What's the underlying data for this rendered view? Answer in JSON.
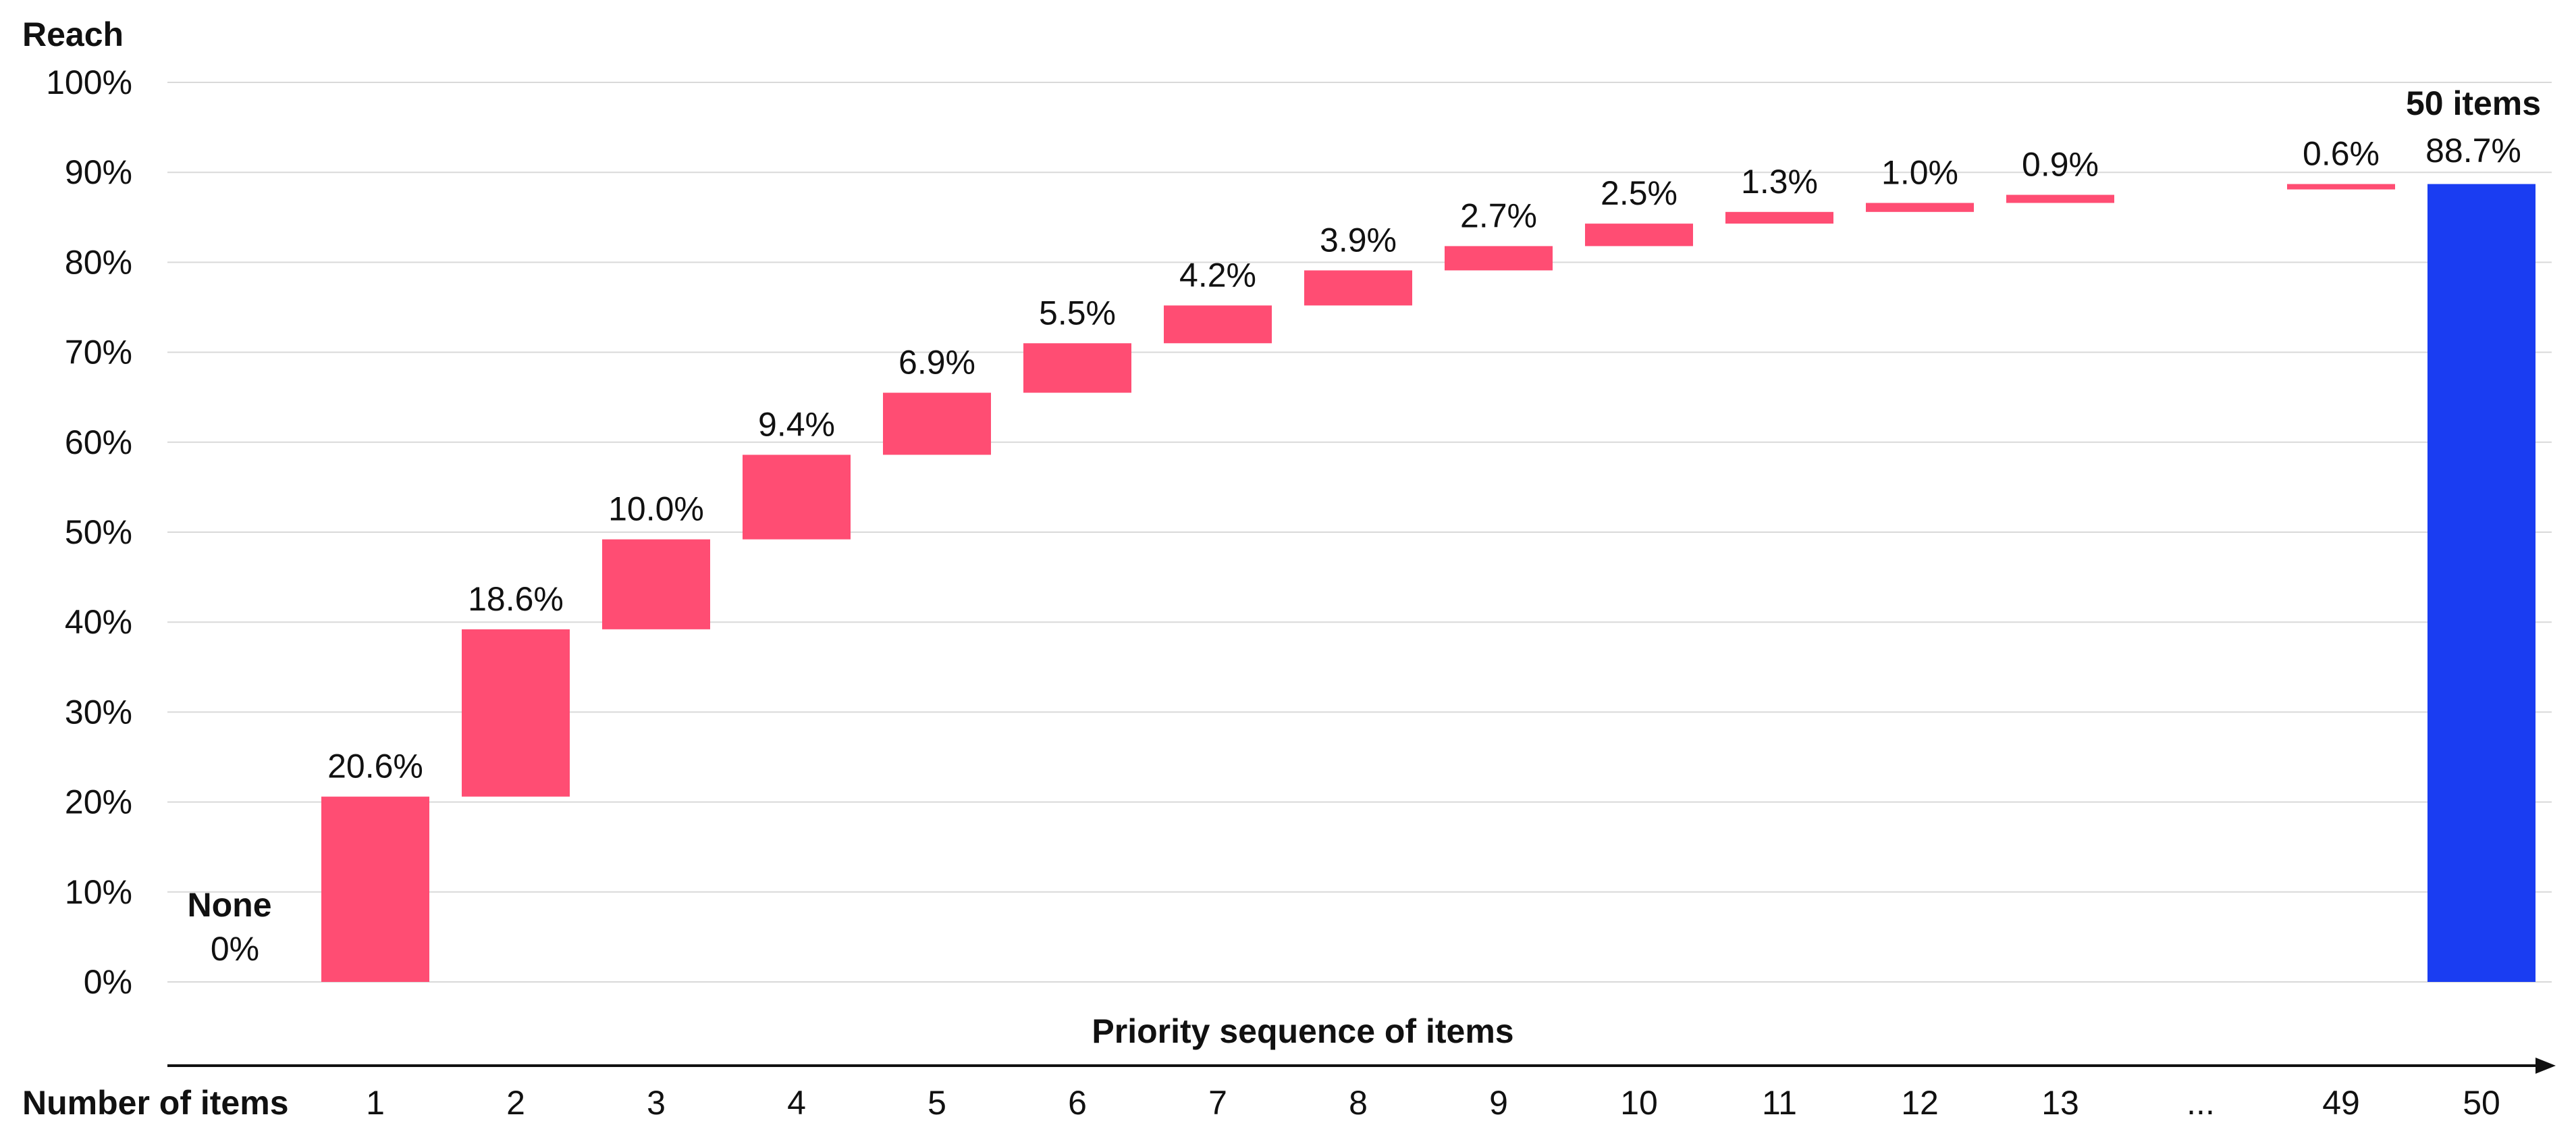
{
  "chart_data": {
    "type": "waterfall",
    "ylabel": "Reach",
    "xlabel": "Priority sequence of items",
    "row_label": "Number of items",
    "ylim": [
      0,
      100
    ],
    "yticks": [
      "0%",
      "10%",
      "20%",
      "30%",
      "40%",
      "50%",
      "60%",
      "70%",
      "80%",
      "90%",
      "100%"
    ],
    "grid": true,
    "categories": [
      "",
      "1",
      "2",
      "3",
      "4",
      "5",
      "6",
      "7",
      "8",
      "9",
      "10",
      "11",
      "12",
      "13",
      "...",
      "49",
      "50"
    ],
    "start": {
      "label": "None",
      "value_label": "0%",
      "value": 0
    },
    "steps": [
      {
        "category": "1",
        "increment": 20.6,
        "label": "20.6%"
      },
      {
        "category": "2",
        "increment": 18.6,
        "label": "18.6%"
      },
      {
        "category": "3",
        "increment": 10.0,
        "label": "10.0%"
      },
      {
        "category": "4",
        "increment": 9.4,
        "label": "9.4%"
      },
      {
        "category": "5",
        "increment": 6.9,
        "label": "6.9%"
      },
      {
        "category": "6",
        "increment": 5.5,
        "label": "5.5%"
      },
      {
        "category": "7",
        "increment": 4.2,
        "label": "4.2%"
      },
      {
        "category": "8",
        "increment": 3.9,
        "label": "3.9%"
      },
      {
        "category": "9",
        "increment": 2.7,
        "label": "2.7%"
      },
      {
        "category": "10",
        "increment": 2.5,
        "label": "2.5%"
      },
      {
        "category": "11",
        "increment": 1.3,
        "label": "1.3%"
      },
      {
        "category": "12",
        "increment": 1.0,
        "label": "1.0%"
      },
      {
        "category": "13",
        "increment": 0.9,
        "label": "0.9%"
      },
      {
        "category": "49",
        "increment": 0.6,
        "label": "0.6%",
        "base": 88.1
      }
    ],
    "total": {
      "category": "50",
      "value": 88.7,
      "label": "50 items",
      "value_label": "88.7%"
    },
    "colors": {
      "increment": "#FF4D73",
      "total": "#1A3DF2",
      "grid": "#D9D9D9",
      "axis": "#111111"
    }
  }
}
